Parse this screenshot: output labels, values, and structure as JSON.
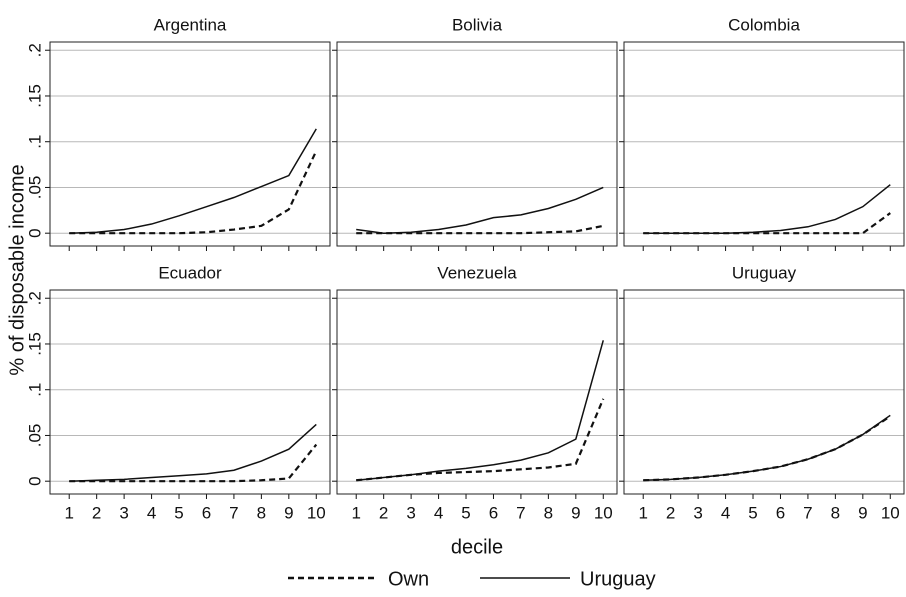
{
  "chart_data": {
    "type": "line",
    "ylabel": "% of disposable income",
    "xlabel": "decile",
    "grid": true,
    "x": [
      1,
      2,
      3,
      4,
      5,
      6,
      7,
      8,
      9,
      10
    ],
    "xlim": [
      0.3,
      10.5
    ],
    "xticks": [
      1,
      2,
      3,
      4,
      5,
      6,
      7,
      8,
      9,
      10
    ],
    "ylim": [
      -0.014,
      0.209
    ],
    "yticks": [
      0,
      {
        "value": 0.05,
        "label": ".05"
      },
      {
        "value": 0.1,
        "label": ".1"
      },
      {
        "value": 0.15,
        "label": ".15"
      },
      {
        "value": 0.2,
        "label": ".2"
      }
    ],
    "series": [
      {
        "name": "Own",
        "color": "#111111",
        "dash": "dashed"
      },
      {
        "name": "Uruguay",
        "color": "#111111",
        "dash": "solid"
      }
    ],
    "panels": [
      {
        "title": "Argentina",
        "series": [
          {
            "values": [
              0,
              0,
              0,
              0,
              0,
              0.001,
              0.004,
              0.008,
              0.026,
              0.09
            ]
          },
          {
            "values": [
              0,
              0.001,
              0.004,
              0.01,
              0.019,
              0.029,
              0.039,
              0.051,
              0.063,
              0.114
            ]
          }
        ]
      },
      {
        "title": "Bolivia",
        "series": [
          {
            "values": [
              0,
              0,
              0,
              0,
              0,
              0,
              0,
              0.001,
              0.002,
              0.008
            ]
          },
          {
            "values": [
              0.004,
              0,
              0.001,
              0.004,
              0.009,
              0.017,
              0.02,
              0.027,
              0.037,
              0.05
            ]
          }
        ]
      },
      {
        "title": "Colombia",
        "series": [
          {
            "values": [
              0,
              0,
              0,
              0,
              0,
              0,
              0,
              0,
              0,
              0.022
            ]
          },
          {
            "values": [
              0,
              0,
              0,
              0,
              0.001,
              0.003,
              0.007,
              0.015,
              0.029,
              0.053
            ]
          }
        ]
      },
      {
        "title": "Ecuador",
        "series": [
          {
            "values": [
              0,
              0,
              0,
              0,
              0,
              0,
              0,
              0.001,
              0.003,
              0.04
            ]
          },
          {
            "values": [
              0,
              0.001,
              0.002,
              0.004,
              0.006,
              0.008,
              0.012,
              0.022,
              0.035,
              0.062
            ]
          }
        ]
      },
      {
        "title": "Venezuela",
        "series": [
          {
            "values": [
              0.001,
              0.004,
              0.007,
              0.009,
              0.01,
              0.011,
              0.013,
              0.015,
              0.019,
              0.09
            ]
          },
          {
            "values": [
              0.001,
              0.004,
              0.007,
              0.011,
              0.014,
              0.018,
              0.023,
              0.031,
              0.046,
              0.154
            ]
          }
        ]
      },
      {
        "title": "Uruguay",
        "series": [
          {
            "values": [
              0.001,
              0.002,
              0.004,
              0.007,
              0.011,
              0.016,
              0.024,
              0.035,
              0.051,
              0.071
            ]
          },
          {
            "values": [
              0.001,
              0.002,
              0.004,
              0.007,
              0.011,
              0.016,
              0.024,
              0.035,
              0.051,
              0.072
            ]
          }
        ]
      }
    ]
  }
}
